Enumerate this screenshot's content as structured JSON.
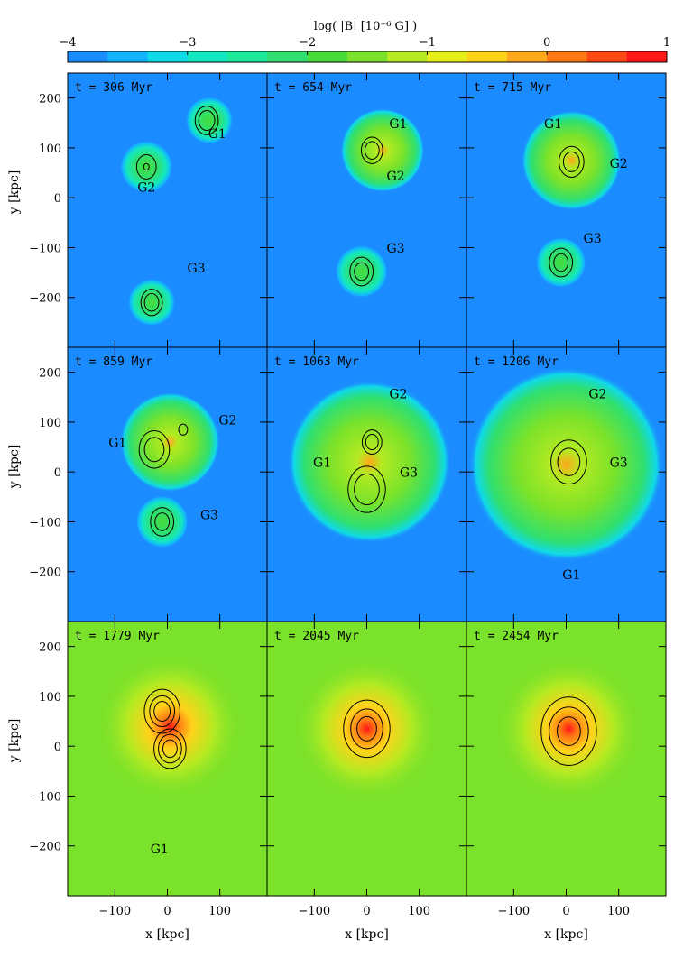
{
  "colorbar": {
    "title": "log( |B| [10⁻⁶ G] )",
    "ticks": [
      "−4",
      "−3",
      "−2",
      "−1",
      "0",
      "1"
    ],
    "tick_values": [
      -4,
      -3,
      -2,
      -1,
      0,
      1
    ],
    "range": [
      -4,
      1
    ],
    "colors": [
      "#1a8cff",
      "#12b4ff",
      "#10d9e8",
      "#14e8c0",
      "#1ee89a",
      "#2fe070",
      "#45dc3a",
      "#7ae22a",
      "#b4ea22",
      "#e6ee1a",
      "#ffd21a",
      "#ffa81a",
      "#ff7a14",
      "#ff4a14",
      "#ff1818"
    ]
  },
  "axes": {
    "xlabel": "x [kpc]",
    "ylabel": "y [kpc]",
    "x_ticks": [
      "−100",
      "0",
      "100"
    ],
    "x_tick_values": [
      -100,
      0,
      100
    ],
    "y_ticks": [
      "200",
      "100",
      "0",
      "−100",
      "−200"
    ],
    "y_tick_values": [
      200,
      100,
      0,
      -100,
      -200
    ],
    "xlim": [
      -190,
      190
    ],
    "ylim": [
      -300,
      250
    ]
  },
  "panels": [
    {
      "time": "t =  306 Myr",
      "labels": [
        {
          "text": "G1",
          "x": 95,
          "y": 120
        },
        {
          "text": "G2",
          "x": -40,
          "y": 12
        },
        {
          "text": "G3",
          "x": 55,
          "y": -150
        }
      ],
      "blobs": [
        {
          "x": 80,
          "y": 155,
          "r": 45,
          "level": -2.1
        },
        {
          "x": -40,
          "y": 62,
          "r": 50,
          "level": -2.3
        },
        {
          "x": -30,
          "y": -210,
          "r": 45,
          "level": -2.1
        }
      ],
      "contours": [
        {
          "x": 75,
          "y": 155,
          "r": [
            18,
            26
          ]
        },
        {
          "x": -40,
          "y": 62,
          "r": [
            22,
            6
          ]
        },
        {
          "x": -30,
          "y": -210,
          "r": [
            16,
            24
          ]
        }
      ]
    },
    {
      "time": "t =  654 Myr",
      "labels": [
        {
          "text": "G1",
          "x": 60,
          "y": 140
        },
        {
          "text": "G2",
          "x": 55,
          "y": 35
        },
        {
          "text": "G3",
          "x": 55,
          "y": -110
        }
      ],
      "blobs": [
        {
          "x": 30,
          "y": 95,
          "r": 80,
          "level": -1.7
        },
        {
          "x": -10,
          "y": -148,
          "r": 50,
          "level": -2.1
        }
      ],
      "contours": [
        {
          "x": 10,
          "y": 95,
          "r": [
            16,
            24
          ]
        },
        {
          "x": -10,
          "y": -148,
          "r": [
            16,
            26
          ]
        }
      ]
    },
    {
      "time": "t =  715 Myr",
      "labels": [
        {
          "text": "G1",
          "x": -25,
          "y": 140
        },
        {
          "text": "G2",
          "x": 100,
          "y": 60
        },
        {
          "text": "G3",
          "x": 50,
          "y": -90
        }
      ],
      "blobs": [
        {
          "x": 10,
          "y": 75,
          "r": 95,
          "level": -1.6
        },
        {
          "x": -10,
          "y": -130,
          "r": 48,
          "level": -2.1
        }
      ],
      "contours": [
        {
          "x": 10,
          "y": 72,
          "r": [
            18,
            28
          ]
        },
        {
          "x": -10,
          "y": -130,
          "r": [
            16,
            26
          ]
        }
      ]
    },
    {
      "time": "t =  859 Myr",
      "labels": [
        {
          "text": "G2",
          "x": 115,
          "y": 95
        },
        {
          "text": "G1",
          "x": -95,
          "y": 50
        },
        {
          "text": "G3",
          "x": 80,
          "y": -95
        }
      ],
      "blobs": [
        {
          "x": 5,
          "y": 60,
          "r": 95,
          "level": -1.8
        },
        {
          "x": -10,
          "y": -100,
          "r": 50,
          "level": -2.1
        }
      ],
      "contours": [
        {
          "x": -25,
          "y": 45,
          "r": [
            22,
            34
          ]
        },
        {
          "x": 30,
          "y": 85,
          "r": [
            10
          ]
        },
        {
          "x": -10,
          "y": -100,
          "r": [
            16,
            26
          ]
        }
      ]
    },
    {
      "time": "t =  1063 Myr",
      "labels": [
        {
          "text": "G2",
          "x": 60,
          "y": 148
        },
        {
          "text": "G1",
          "x": -85,
          "y": 10
        },
        {
          "text": "G3",
          "x": 80,
          "y": -10
        }
      ],
      "blobs": [
        {
          "x": 5,
          "y": 20,
          "r": 155,
          "level": -1.6
        }
      ],
      "contours": [
        {
          "x": 0,
          "y": -35,
          "r": [
            28,
            42
          ]
        },
        {
          "x": 10,
          "y": 60,
          "r": [
            14,
            22
          ]
        }
      ]
    },
    {
      "time": "t =  1206 Myr",
      "labels": [
        {
          "text": "G2",
          "x": 60,
          "y": 148
        },
        {
          "text": "G3",
          "x": 100,
          "y": 10
        },
        {
          "text": "G1",
          "x": 10,
          "y": -215
        }
      ],
      "blobs": [
        {
          "x": 0,
          "y": 15,
          "r": 185,
          "level": -1.5
        }
      ],
      "contours": [
        {
          "x": 5,
          "y": 20,
          "r": [
            25,
            40
          ]
        }
      ]
    },
    {
      "time": "t =  1779 Myr",
      "labels": [
        {
          "text": "G1",
          "x": -15,
          "y": -215
        }
      ],
      "blobs": [
        {
          "x": 5,
          "y": 40,
          "r": 140,
          "level": -0.9
        }
      ],
      "contours": [
        {
          "x": -10,
          "y": 70,
          "r": [
            18,
            28,
            40
          ]
        },
        {
          "x": 5,
          "y": -5,
          "r": [
            16,
            26,
            36
          ]
        }
      ]
    },
    {
      "time": "t =  2045 Myr",
      "labels": [],
      "blobs": [
        {
          "x": 0,
          "y": 35,
          "r": 140,
          "level": -0.9
        }
      ],
      "contours": [
        {
          "x": 0,
          "y": 35,
          "r": [
            22,
            36,
            52
          ]
        }
      ]
    },
    {
      "time": "t =  2454 Myr",
      "labels": [],
      "blobs": [
        {
          "x": 5,
          "y": 35,
          "r": 140,
          "level": -0.9
        }
      ],
      "contours": [
        {
          "x": 5,
          "y": 30,
          "r": [
            26,
            44,
            62
          ]
        }
      ]
    }
  ]
}
